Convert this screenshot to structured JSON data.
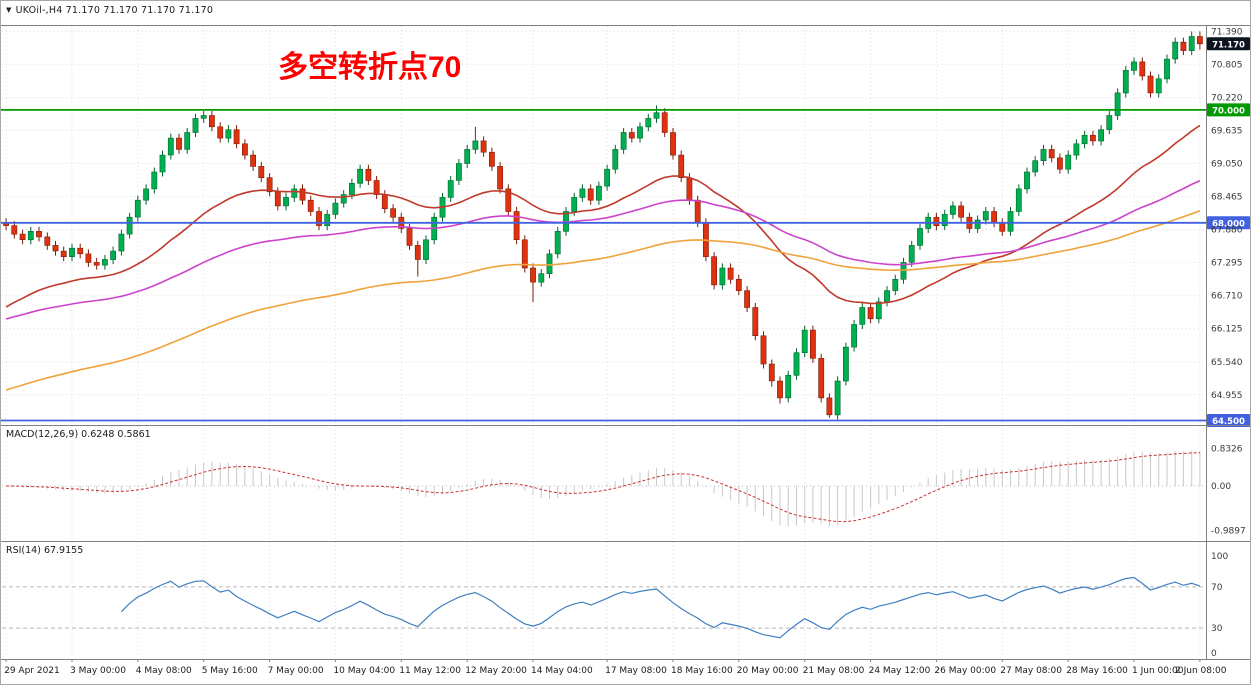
{
  "header": {
    "collapse_icon": "▼",
    "text": "UKOil-,H4 71.170 71.170 71.170 71.170"
  },
  "annotation": {
    "text": "多空转折点70"
  },
  "panels": {
    "macd_header": "MACD(12,26,9) 0.6248 0.5861",
    "rsi_header": "RSI(14) 67.9155"
  },
  "colors": {
    "background": "#ffffff",
    "up": "#00b050",
    "up_stroke": "#00662e",
    "down": "#e03210",
    "down_stroke": "#7a1d06",
    "hline_green": "#009900",
    "hline_blue": "#4161e0",
    "price_badge": "#0e1320",
    "grid": "#dcdcdc",
    "separator": "#808080",
    "macd_hist": "#c9c9c9",
    "macd_signal": "#cc3333",
    "rsi_line": "#3f7fc1",
    "level_dash": "#b8b8b8",
    "axis_text": "#3a3a3a",
    "annotation": "#ff0000"
  },
  "chart_data": {
    "type": "candlestick",
    "title": "UKOil-,H4",
    "symbol": "UKOil-",
    "timeframe": "H4",
    "quote": {
      "open": "71.170",
      "high": "71.170",
      "low": "71.170",
      "close": "71.170"
    },
    "ylim": [
      64.42,
      71.45
    ],
    "y_ticks": [
      71.39,
      70.805,
      70.22,
      69.635,
      69.05,
      68.465,
      67.88,
      67.295,
      66.71,
      66.125,
      65.54,
      64.955
    ],
    "x_tick_labels": [
      "29 Apr 2021",
      "3 May 00:00",
      "4 May 08:00",
      "5 May 16:00",
      "7 May 00:00",
      "10 May 04:00",
      "11 May 12:00",
      "12 May 20:00",
      "14 May 04:00",
      "17 May 08:00",
      "18 May 16:00",
      "20 May 00:00",
      "21 May 08:00",
      "24 May 12:00",
      "26 May 00:00",
      "27 May 08:00",
      "28 May 16:00",
      "1 Jun 00:00",
      "2 Jun 08:00"
    ],
    "hlines": [
      {
        "price": 70.0,
        "label": "70.000",
        "color": "#009900"
      },
      {
        "price": 68.0,
        "label": "68.000",
        "color": "#4161e0"
      },
      {
        "price": 64.5,
        "label": "64.500",
        "color": "#4161e0"
      }
    ],
    "current_price": {
      "value": 71.17,
      "label": "71.170"
    },
    "moving_averages": [
      {
        "period": 30,
        "seed": 66.41,
        "color": "#c0392b"
      },
      {
        "period": 72,
        "seed": 66.25,
        "color": "#cc44cc"
      },
      {
        "period": 120,
        "seed": 64.99,
        "color": "#efa33a"
      }
    ],
    "indicators": {
      "macd": {
        "params": "12,26,9",
        "display_values": [
          0.6248,
          0.5861
        ],
        "axis": [
          {
            "v": 0.8326,
            "t": "0.8326"
          },
          {
            "v": 0,
            "t": "0.00"
          },
          {
            "v": -0.9897,
            "t": "-0.9897"
          }
        ]
      },
      "rsi": {
        "period": 14,
        "display_value": 67.9155,
        "axis": [
          {
            "v": 100,
            "t": "100"
          },
          {
            "v": 70,
            "t": "70"
          },
          {
            "v": 30,
            "t": "30"
          },
          {
            "v": 0,
            "t": "0"
          }
        ],
        "levels": [
          70,
          30
        ]
      }
    },
    "ohlc": [
      [
        68.0,
        68.08,
        67.87,
        67.95
      ],
      [
        67.95,
        68.03,
        67.72,
        67.8
      ],
      [
        67.8,
        67.88,
        67.62,
        67.7
      ],
      [
        67.7,
        67.93,
        67.62,
        67.85
      ],
      [
        67.85,
        67.93,
        67.67,
        67.75
      ],
      [
        67.75,
        67.83,
        67.52,
        67.6
      ],
      [
        67.6,
        67.68,
        67.42,
        67.5
      ],
      [
        67.5,
        67.58,
        67.32,
        67.4
      ],
      [
        67.4,
        67.63,
        67.32,
        67.55
      ],
      [
        67.55,
        67.63,
        67.37,
        67.45
      ],
      [
        67.45,
        67.53,
        67.22,
        67.3
      ],
      [
        67.3,
        67.38,
        67.17,
        67.25
      ],
      [
        67.25,
        67.43,
        67.17,
        67.35
      ],
      [
        67.35,
        67.58,
        67.27,
        67.5
      ],
      [
        67.5,
        67.88,
        67.42,
        67.8
      ],
      [
        67.8,
        68.18,
        67.72,
        68.1
      ],
      [
        68.1,
        68.48,
        68.02,
        68.4
      ],
      [
        68.4,
        68.68,
        68.32,
        68.6
      ],
      [
        68.6,
        68.98,
        68.52,
        68.9
      ],
      [
        68.9,
        69.28,
        68.82,
        69.2
      ],
      [
        69.2,
        69.58,
        69.12,
        69.5
      ],
      [
        69.5,
        69.58,
        69.22,
        69.3
      ],
      [
        69.3,
        69.68,
        69.22,
        69.6
      ],
      [
        69.6,
        69.93,
        69.52,
        69.85
      ],
      [
        69.85,
        69.98,
        69.77,
        69.9
      ],
      [
        69.9,
        69.98,
        69.62,
        69.7
      ],
      [
        69.7,
        69.78,
        69.42,
        69.5
      ],
      [
        69.5,
        69.73,
        69.42,
        69.65
      ],
      [
        69.65,
        69.73,
        69.32,
        69.4
      ],
      [
        69.4,
        69.48,
        69.12,
        69.2
      ],
      [
        69.2,
        69.28,
        68.92,
        69.0
      ],
      [
        69.0,
        69.08,
        68.72,
        68.8
      ],
      [
        68.8,
        68.88,
        68.47,
        68.55
      ],
      [
        68.55,
        68.63,
        68.22,
        68.3
      ],
      [
        68.3,
        68.53,
        68.22,
        68.45
      ],
      [
        68.45,
        68.68,
        68.37,
        68.6
      ],
      [
        68.6,
        68.68,
        68.32,
        68.4
      ],
      [
        68.4,
        68.48,
        68.12,
        68.2
      ],
      [
        68.2,
        68.28,
        67.87,
        67.95
      ],
      [
        67.95,
        68.23,
        67.87,
        68.15
      ],
      [
        68.15,
        68.43,
        68.07,
        68.35
      ],
      [
        68.35,
        68.58,
        68.27,
        68.5
      ],
      [
        68.5,
        68.78,
        68.42,
        68.7
      ],
      [
        68.7,
        69.03,
        68.62,
        68.95
      ],
      [
        68.95,
        69.03,
        68.67,
        68.75
      ],
      [
        68.75,
        68.83,
        68.42,
        68.5
      ],
      [
        68.5,
        68.58,
        68.17,
        68.25
      ],
      [
        68.25,
        68.33,
        68.02,
        68.1
      ],
      [
        68.1,
        68.18,
        67.82,
        67.9
      ],
      [
        67.9,
        67.98,
        67.52,
        67.6
      ],
      [
        67.6,
        67.68,
        67.05,
        67.35
      ],
      [
        67.35,
        67.78,
        67.27,
        67.7
      ],
      [
        67.7,
        68.18,
        67.62,
        68.1
      ],
      [
        68.1,
        68.53,
        68.02,
        68.45
      ],
      [
        68.45,
        68.83,
        68.37,
        68.75
      ],
      [
        68.75,
        69.13,
        68.67,
        69.05
      ],
      [
        69.05,
        69.38,
        68.97,
        69.3
      ],
      [
        69.3,
        69.7,
        69.22,
        69.45
      ],
      [
        69.45,
        69.53,
        69.17,
        69.25
      ],
      [
        69.25,
        69.33,
        68.92,
        69.0
      ],
      [
        69.0,
        69.08,
        68.52,
        68.6
      ],
      [
        68.6,
        68.68,
        68.12,
        68.2
      ],
      [
        68.2,
        68.28,
        67.62,
        67.7
      ],
      [
        67.7,
        67.78,
        67.12,
        67.2
      ],
      [
        67.2,
        67.28,
        66.6,
        66.95
      ],
      [
        66.95,
        67.18,
        66.87,
        67.1
      ],
      [
        67.1,
        67.53,
        67.02,
        67.45
      ],
      [
        67.45,
        67.93,
        67.37,
        67.85
      ],
      [
        67.85,
        68.28,
        67.77,
        68.2
      ],
      [
        68.2,
        68.53,
        68.12,
        68.45
      ],
      [
        68.45,
        68.68,
        68.37,
        68.6
      ],
      [
        68.6,
        68.68,
        68.32,
        68.4
      ],
      [
        68.4,
        68.73,
        68.32,
        68.65
      ],
      [
        68.65,
        69.03,
        68.57,
        68.95
      ],
      [
        68.95,
        69.38,
        68.87,
        69.3
      ],
      [
        69.3,
        69.68,
        69.22,
        69.6
      ],
      [
        69.6,
        69.68,
        69.42,
        69.5
      ],
      [
        69.5,
        69.78,
        69.42,
        69.7
      ],
      [
        69.7,
        69.93,
        69.62,
        69.85
      ],
      [
        69.85,
        70.08,
        69.77,
        69.95
      ],
      [
        69.95,
        70.03,
        69.52,
        69.6
      ],
      [
        69.6,
        69.68,
        69.12,
        69.2
      ],
      [
        69.2,
        69.28,
        68.72,
        68.8
      ],
      [
        68.8,
        68.88,
        68.32,
        68.4
      ],
      [
        68.4,
        68.48,
        67.92,
        68.0
      ],
      [
        68.0,
        68.08,
        67.32,
        67.4
      ],
      [
        67.4,
        67.48,
        66.82,
        66.9
      ],
      [
        66.9,
        67.28,
        66.82,
        67.2
      ],
      [
        67.2,
        67.28,
        66.92,
        67.0
      ],
      [
        67.0,
        67.08,
        66.72,
        66.8
      ],
      [
        66.8,
        66.88,
        66.42,
        66.5
      ],
      [
        66.5,
        66.58,
        65.92,
        66.0
      ],
      [
        66.0,
        66.08,
        65.42,
        65.5
      ],
      [
        65.5,
        65.58,
        65.1,
        65.2
      ],
      [
        65.2,
        65.28,
        64.8,
        64.9
      ],
      [
        64.9,
        65.38,
        64.82,
        65.3
      ],
      [
        65.3,
        65.78,
        65.22,
        65.7
      ],
      [
        65.7,
        66.18,
        65.62,
        66.1
      ],
      [
        66.1,
        66.18,
        65.52,
        65.6
      ],
      [
        65.6,
        65.68,
        64.82,
        64.9
      ],
      [
        64.9,
        64.98,
        64.55,
        64.6
      ],
      [
        64.6,
        65.28,
        64.52,
        65.2
      ],
      [
        65.2,
        65.88,
        65.12,
        65.8
      ],
      [
        65.8,
        66.28,
        65.72,
        66.2
      ],
      [
        66.2,
        66.58,
        66.12,
        66.5
      ],
      [
        66.5,
        66.58,
        66.22,
        66.3
      ],
      [
        66.3,
        66.68,
        66.22,
        66.6
      ],
      [
        66.6,
        66.88,
        66.52,
        66.8
      ],
      [
        66.8,
        67.08,
        66.72,
        67.0
      ],
      [
        67.0,
        67.38,
        66.92,
        67.3
      ],
      [
        67.3,
        67.68,
        67.22,
        67.6
      ],
      [
        67.6,
        67.98,
        67.52,
        67.9
      ],
      [
        67.9,
        68.18,
        67.82,
        68.1
      ],
      [
        68.1,
        68.18,
        67.87,
        67.95
      ],
      [
        67.95,
        68.23,
        67.87,
        68.15
      ],
      [
        68.15,
        68.38,
        68.07,
        68.3
      ],
      [
        68.3,
        68.38,
        68.02,
        68.1
      ],
      [
        68.1,
        68.18,
        67.82,
        67.9
      ],
      [
        67.9,
        68.13,
        67.82,
        68.05
      ],
      [
        68.05,
        68.28,
        67.97,
        68.2
      ],
      [
        68.2,
        68.28,
        67.92,
        68.0
      ],
      [
        68.0,
        68.08,
        67.77,
        67.85
      ],
      [
        67.85,
        68.28,
        67.77,
        68.2
      ],
      [
        68.2,
        68.68,
        68.12,
        68.6
      ],
      [
        68.6,
        68.98,
        68.52,
        68.9
      ],
      [
        68.9,
        69.18,
        68.82,
        69.1
      ],
      [
        69.1,
        69.38,
        69.02,
        69.3
      ],
      [
        69.3,
        69.38,
        69.07,
        69.15
      ],
      [
        69.15,
        69.23,
        68.87,
        68.95
      ],
      [
        68.95,
        69.28,
        68.87,
        69.2
      ],
      [
        69.2,
        69.48,
        69.12,
        69.4
      ],
      [
        69.4,
        69.63,
        69.32,
        69.55
      ],
      [
        69.55,
        69.63,
        69.37,
        69.45
      ],
      [
        69.45,
        69.73,
        69.37,
        69.65
      ],
      [
        69.65,
        69.98,
        69.57,
        69.9
      ],
      [
        69.9,
        70.38,
        69.82,
        70.3
      ],
      [
        70.3,
        70.78,
        70.22,
        70.7
      ],
      [
        70.7,
        70.93,
        70.62,
        70.85
      ],
      [
        70.85,
        70.93,
        70.52,
        70.6
      ],
      [
        70.6,
        70.68,
        70.22,
        70.3
      ],
      [
        70.3,
        70.63,
        70.22,
        70.55
      ],
      [
        70.55,
        70.98,
        70.47,
        70.9
      ],
      [
        70.9,
        71.28,
        70.82,
        71.2
      ],
      [
        71.2,
        71.28,
        70.97,
        71.05
      ],
      [
        71.05,
        71.39,
        70.97,
        71.3
      ],
      [
        71.3,
        71.39,
        71.07,
        71.17
      ]
    ]
  }
}
